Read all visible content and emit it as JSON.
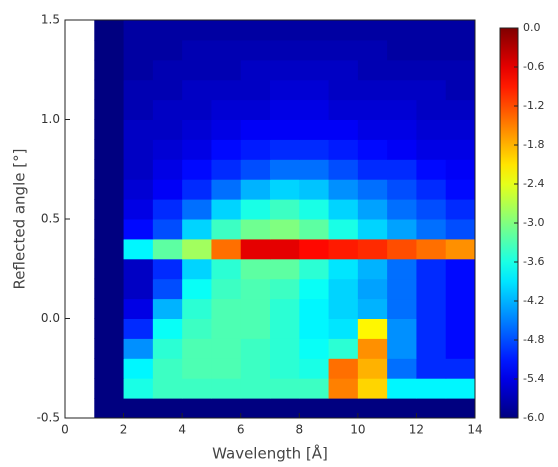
{
  "chart_data": {
    "type": "heatmap",
    "xlabel": "Wavelength [Å]",
    "ylabel": "Reflected angle [°]",
    "xlim": [
      0,
      14
    ],
    "ylim": [
      -0.5,
      1.5
    ],
    "xticks": [
      0,
      2,
      4,
      6,
      8,
      10,
      12,
      14
    ],
    "yticks": [
      -0.5,
      {
        "value": 0,
        "label": "0.0"
      },
      0.5,
      {
        "value": 1,
        "label": "1.0"
      },
      1.5
    ],
    "colormap": "jet",
    "zlim": [
      -6,
      0
    ],
    "zticks": [
      {
        "value": 0,
        "label": "0.0"
      },
      -0.6,
      -1.2,
      -1.8,
      -2.4,
      {
        "value": -3,
        "label": "-3.0"
      },
      -3.6,
      -4.2,
      -4.8,
      -5.4,
      {
        "value": -6,
        "label": "-6.0"
      }
    ],
    "xbins": [
      1,
      2,
      3,
      4,
      5,
      6,
      7,
      8,
      9,
      10,
      11,
      12,
      13,
      14
    ],
    "ybins": [
      -0.5,
      -0.4,
      -0.3,
      -0.2,
      -0.1,
      0,
      0.1,
      0.2,
      0.3,
      0.4,
      0.5,
      0.6,
      0.7,
      0.8,
      0.9,
      1.0,
      1.1,
      1.2,
      1.3,
      1.4,
      1.5
    ],
    "z": [
      [
        -6,
        -6,
        -6,
        -6,
        -6,
        -6,
        -6,
        -6,
        -6,
        -6,
        -6,
        -6,
        -6
      ],
      [
        -6,
        -3.6,
        -3.4,
        -3.4,
        -3.4,
        -3.4,
        -3.4,
        -3.4,
        -1.5,
        -2,
        -3.8,
        -3.8,
        -3.8
      ],
      [
        -6,
        -3.8,
        -3.4,
        -3.3,
        -3.3,
        -3.4,
        -3.5,
        -3.6,
        -1.4,
        -1.8,
        -4.6,
        -5,
        -5
      ],
      [
        -6,
        -4.4,
        -3.5,
        -3.3,
        -3.3,
        -3.4,
        -3.5,
        -3.7,
        -3.5,
        -1.6,
        -4.4,
        -5,
        -5.2
      ],
      [
        -6,
        -5,
        -3.7,
        -3.4,
        -3.3,
        -3.3,
        -3.5,
        -3.8,
        -3.9,
        -2.2,
        -4.4,
        -5,
        -5.2
      ],
      [
        -6,
        -5.4,
        -4.2,
        -3.5,
        -3.3,
        -3.3,
        -3.5,
        -3.8,
        -4,
        -4.2,
        -4.6,
        -5,
        -5.2
      ],
      [
        -6,
        -5.6,
        -4.8,
        -3.7,
        -3.4,
        -3.3,
        -3.4,
        -3.7,
        -4,
        -4.3,
        -4.6,
        -5,
        -5.2
      ],
      [
        -6,
        -5.6,
        -5,
        -4,
        -3.5,
        -3.2,
        -3.2,
        -3.5,
        -3.9,
        -4.2,
        -4.6,
        -5,
        -5.2
      ],
      [
        -6,
        -3.8,
        -3.2,
        -2.8,
        -1.4,
        -0.6,
        -0.6,
        -0.8,
        -0.9,
        -1,
        -1.2,
        -1.4,
        -1.6
      ],
      [
        -6,
        -5.2,
        -4.8,
        -4,
        -3.4,
        -3.1,
        -3,
        -3.2,
        -3.6,
        -4,
        -4.3,
        -4.6,
        -4.8
      ],
      [
        -6,
        -5.4,
        -5,
        -4.6,
        -4,
        -3.6,
        -3.4,
        -3.6,
        -4,
        -4.3,
        -4.6,
        -4.8,
        -5
      ],
      [
        -6,
        -5.5,
        -5.3,
        -5,
        -4.6,
        -4.2,
        -4,
        -4.1,
        -4.4,
        -4.6,
        -4.8,
        -5,
        -5.2
      ],
      [
        -6,
        -5.6,
        -5.4,
        -5.2,
        -5,
        -4.8,
        -4.6,
        -4.6,
        -4.8,
        -5,
        -5,
        -5.2,
        -5.3
      ],
      [
        -6,
        -5.6,
        -5.5,
        -5.4,
        -5.2,
        -5.1,
        -5,
        -5,
        -5.1,
        -5.2,
        -5.3,
        -5.4,
        -5.4
      ],
      [
        -6,
        -5.6,
        -5.6,
        -5.5,
        -5.4,
        -5.3,
        -5.3,
        -5.3,
        -5.3,
        -5.4,
        -5.4,
        -5.5,
        -5.5
      ],
      [
        -6,
        -5.7,
        -5.6,
        -5.6,
        -5.5,
        -5.5,
        -5.4,
        -5.4,
        -5.5,
        -5.5,
        -5.5,
        -5.6,
        -5.6
      ],
      [
        -6,
        -5.7,
        -5.7,
        -5.6,
        -5.6,
        -5.6,
        -5.5,
        -5.5,
        -5.6,
        -5.6,
        -5.6,
        -5.6,
        -5.7
      ],
      [
        -6,
        -5.8,
        -5.7,
        -5.7,
        -5.7,
        -5.6,
        -5.6,
        -5.6,
        -5.6,
        -5.7,
        -5.7,
        -5.7,
        -5.7
      ],
      [
        -6,
        -5.8,
        -5.8,
        -5.7,
        -5.7,
        -5.7,
        -5.7,
        -5.7,
        -5.7,
        -5.7,
        -5.8,
        -5.8,
        -5.8
      ],
      [
        -6,
        -5.8,
        -5.8,
        -5.8,
        -5.8,
        -5.8,
        -5.8,
        -5.8,
        -5.8,
        -5.8,
        -5.8,
        -5.8,
        -5.8
      ]
    ]
  }
}
